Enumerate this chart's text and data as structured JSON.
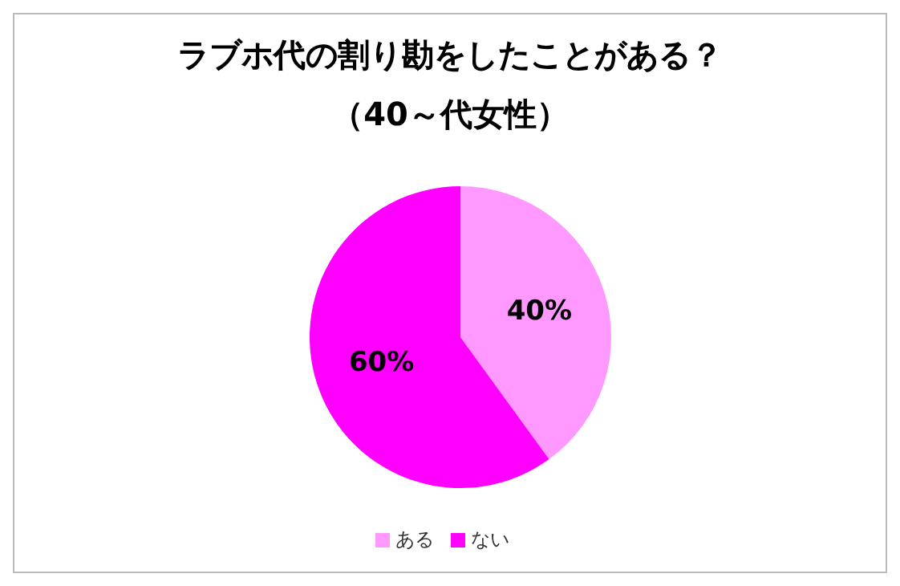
{
  "chart_data": {
    "type": "pie",
    "title": "ラブホ代の割り勘をしたことがある？",
    "subtitle": "（40～代女性）",
    "categories": [
      "ある",
      "ない"
    ],
    "values": [
      40,
      60
    ],
    "colors": [
      "#ff99ff",
      "#ff00ff"
    ],
    "value_labels": [
      "40%",
      "60%"
    ],
    "legend": "bottom"
  }
}
